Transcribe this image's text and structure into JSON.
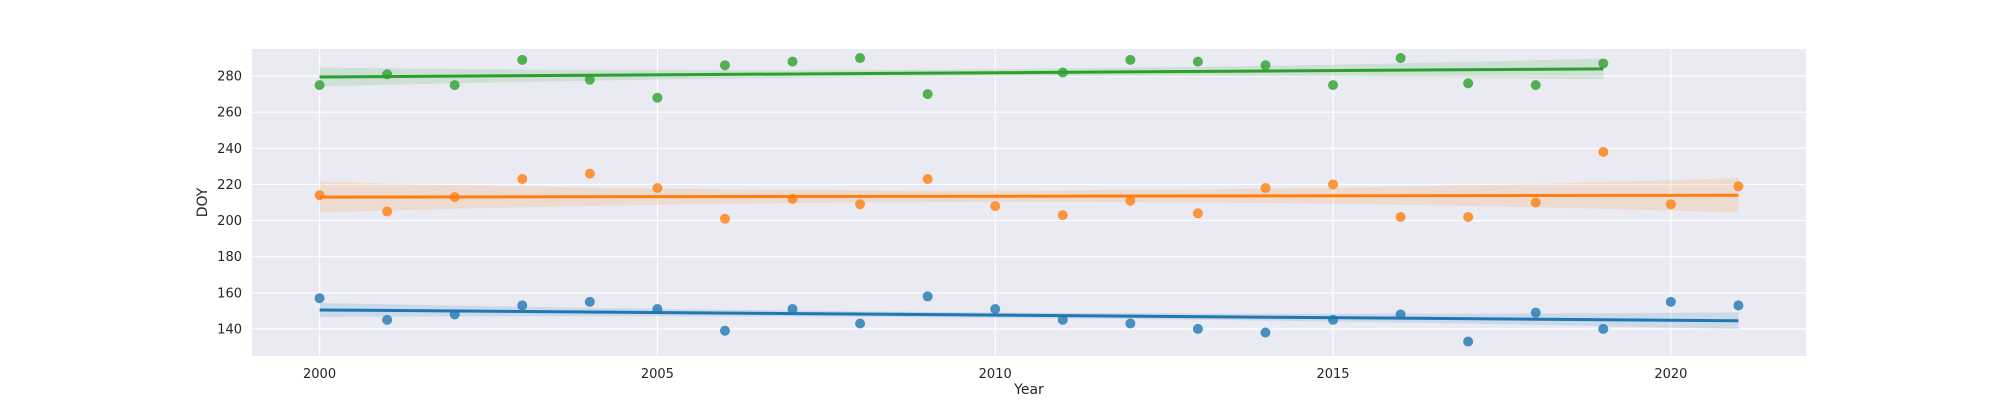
{
  "chart_data": {
    "type": "scatter",
    "xlabel": "Year",
    "ylabel": "DOY",
    "xlim": [
      1999,
      2022
    ],
    "ylim": [
      125,
      295
    ],
    "xticks": [
      2000,
      2005,
      2010,
      2015,
      2020
    ],
    "yticks": [
      140,
      160,
      180,
      200,
      220,
      240,
      260,
      280
    ],
    "grid": true,
    "series": [
      {
        "color": "#1f77b4",
        "x": [
          2000,
          2001,
          2002,
          2003,
          2004,
          2005,
          2006,
          2007,
          2008,
          2009,
          2010,
          2011,
          2012,
          2013,
          2014,
          2015,
          2016,
          2017,
          2018,
          2019,
          2020,
          2021
        ],
        "y": [
          157,
          145,
          148,
          153,
          155,
          151,
          139,
          151,
          143,
          158,
          151,
          145,
          143,
          140,
          138,
          145,
          148,
          133,
          149,
          140,
          155,
          153
        ],
        "trend": [
          150.5,
          144.5
        ],
        "ci_half_width": [
          3.5,
          5
        ]
      },
      {
        "color": "#ff7f0e",
        "x": [
          2000,
          2001,
          2002,
          2003,
          2004,
          2005,
          2006,
          2007,
          2008,
          2009,
          2010,
          2011,
          2012,
          2013,
          2014,
          2015,
          2016,
          2017,
          2018,
          2019,
          2020,
          2021
        ],
        "y": [
          214,
          205,
          213,
          223,
          226,
          218,
          201,
          212,
          209,
          223,
          208,
          203,
          211,
          204,
          218,
          220,
          202,
          202,
          210,
          238,
          209,
          219
        ],
        "trend": [
          213,
          214
        ],
        "ci_half_width": [
          8,
          10
        ]
      },
      {
        "color": "#2ca02c",
        "x": [
          2000,
          2001,
          2002,
          2003,
          2004,
          2005,
          2006,
          2007,
          2008,
          2009,
          2011,
          2012,
          2013,
          2014,
          2015,
          2016,
          2017,
          2018,
          2019
        ],
        "y": [
          275,
          281,
          275,
          289,
          278,
          268,
          286,
          288,
          290,
          270,
          282,
          289,
          288,
          286,
          275,
          290,
          276,
          275,
          287
        ],
        "trend": [
          279.5,
          284
        ],
        "ci_half_width": [
          5,
          6
        ]
      }
    ]
  }
}
